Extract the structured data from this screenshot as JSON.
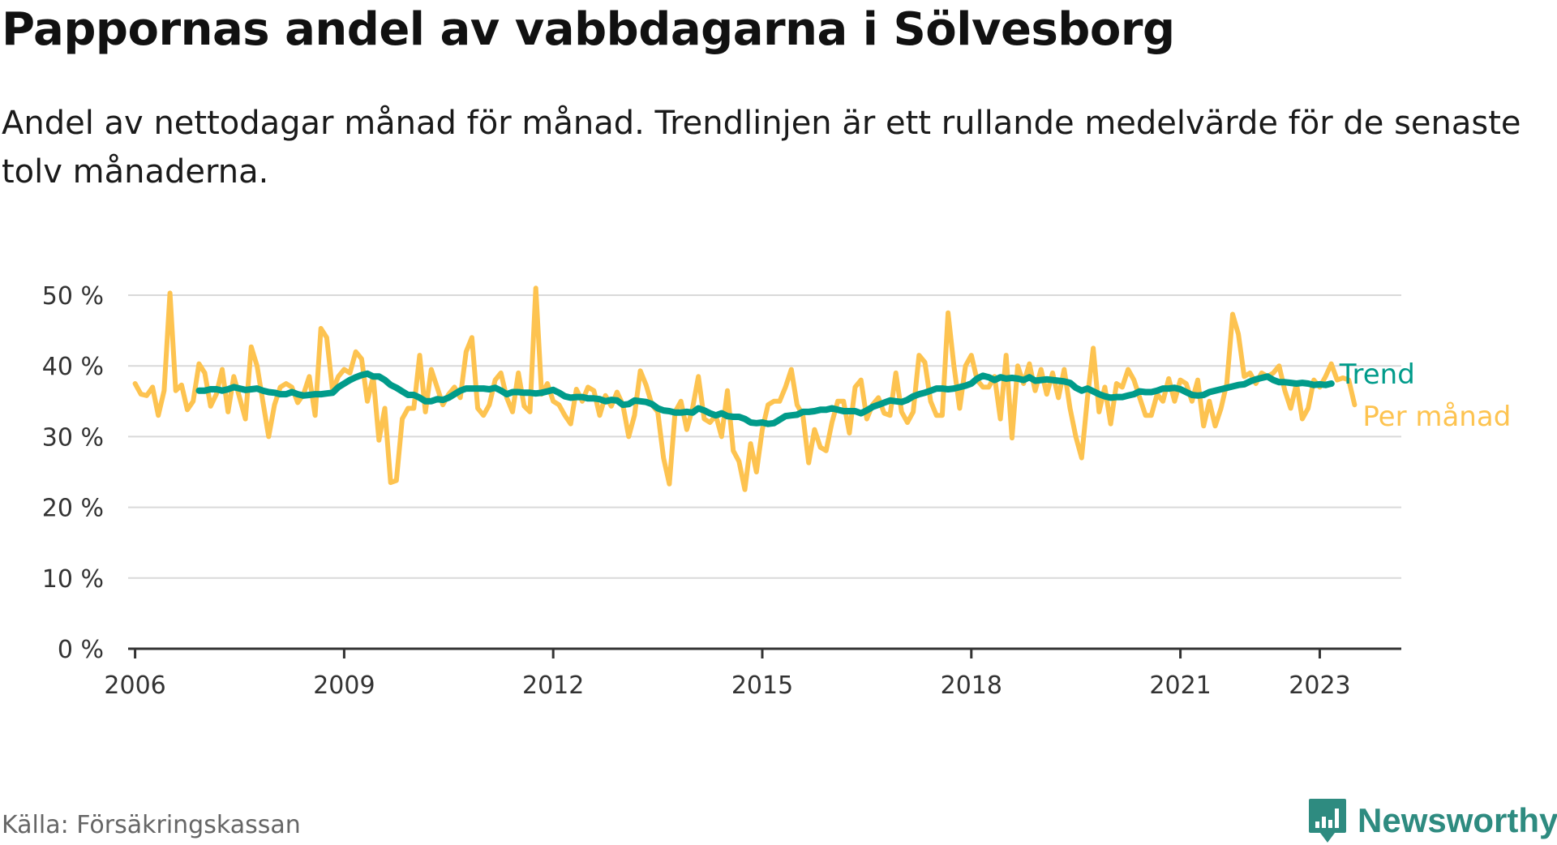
{
  "title": "Pappornas andel av vabbdagarna i Sölvesborg",
  "subtitle": "Andel av nettodagar månad för månad. Trendlinjen är ett rullande medelvärde för de senaste tolv månaderna.",
  "source": "Källa: Försäkringskassan",
  "brand": "Newsworthy",
  "colors": {
    "monthly": "#fdc350",
    "trend": "#009b8a",
    "grid": "#d9d9d9",
    "axis": "#333333",
    "brand": "#2e8b80"
  },
  "chart_data": {
    "type": "line",
    "title": "Pappornas andel av vabbdagarna i Sölvesborg",
    "xlabel": "",
    "ylabel": "",
    "ylim": [
      0,
      50
    ],
    "xlim": [
      2005.9,
      2024.17
    ],
    "y_ticks": [
      0,
      10,
      20,
      30,
      40,
      50
    ],
    "y_tick_labels": [
      "0 %",
      "10 %",
      "20 %",
      "30 %",
      "40 %",
      "50 %"
    ],
    "x_ticks": [
      2006,
      2009,
      2012,
      2015,
      2018,
      2021,
      2023
    ],
    "x_tick_labels": [
      "2006",
      "2009",
      "2012",
      "2015",
      "2018",
      "2021",
      "2023"
    ],
    "start": 2006.0,
    "step": 0.08333,
    "series": [
      {
        "name": "Per månad",
        "values": [
          37.5,
          36,
          35.8,
          37,
          33,
          36.5,
          50.3,
          36.5,
          37.3,
          33.8,
          35,
          40.3,
          39,
          34.3,
          36,
          39.5,
          33.5,
          38.5,
          35.5,
          32.5,
          42.7,
          40,
          35,
          30,
          34.5,
          37,
          37.5,
          37,
          34.8,
          36,
          38.5,
          33,
          45.3,
          44,
          36.5,
          38.5,
          39.5,
          39,
          42,
          41,
          35,
          38.5,
          29.5,
          34,
          23.5,
          23.8,
          32.5,
          34,
          34,
          41.5,
          33.5,
          39.5,
          37,
          34.5,
          36,
          37,
          35.5,
          42,
          44,
          34,
          33,
          34.5,
          38,
          39,
          35.5,
          33.5,
          39,
          34.3,
          33.5,
          51,
          36,
          37.5,
          35,
          34.5,
          33,
          31.8,
          36.7,
          35,
          37,
          36.5,
          33,
          35.8,
          34.3,
          36.3,
          34.5,
          30,
          33,
          39.3,
          37.3,
          34.5,
          33.5,
          27,
          23.3,
          33.5,
          35,
          31,
          34,
          38.5,
          32.5,
          32,
          33,
          30,
          36.5,
          28,
          26.5,
          22.5,
          29,
          25,
          31,
          34.5,
          35,
          35,
          37,
          39.5,
          34.5,
          33,
          26.3,
          31,
          28.5,
          28,
          32,
          35,
          35,
          30.5,
          37,
          38,
          32.5,
          34.5,
          35.5,
          33.3,
          33,
          39,
          33.5,
          32,
          33.5,
          41.5,
          40.5,
          35,
          33,
          33,
          47.5,
          40,
          34,
          40,
          41.5,
          38,
          37,
          37,
          38.5,
          32.5,
          41.5,
          29.8,
          40,
          37.5,
          40.3,
          36.5,
          39.5,
          36,
          39,
          35.5,
          39.5,
          34,
          30,
          27,
          35.5,
          42.5,
          33.5,
          37,
          31.8,
          37.5,
          37,
          39.5,
          38,
          35.5,
          33,
          33,
          36,
          35,
          38.2,
          35,
          38,
          37.5,
          35,
          38,
          31.5,
          35,
          31.5,
          34,
          37.5,
          47.3,
          44.5,
          38.5,
          39,
          37.5,
          39,
          38.5,
          39,
          40,
          36.5,
          34,
          37.5,
          32.5,
          34,
          38,
          37,
          38.5,
          40.3,
          38,
          38.3,
          38,
          34.5
        ]
      },
      {
        "name": "Trend",
        "start": 2006.917,
        "values": [
          36.5,
          36.5,
          36.7,
          36.7,
          36.5,
          36.7,
          37,
          36.8,
          36.6,
          36.7,
          36.8,
          36.5,
          36.3,
          36.2,
          36,
          36,
          36.3,
          36,
          35.8,
          35.9,
          36,
          36,
          36.1,
          36.2,
          37,
          37.5,
          38,
          38.4,
          38.7,
          38.9,
          38.5,
          38.5,
          38,
          37.3,
          36.9,
          36.4,
          35.9,
          35.9,
          35.5,
          35,
          35,
          35.3,
          35.2,
          35.5,
          36,
          36.5,
          36.8,
          36.8,
          36.8,
          36.8,
          36.7,
          36.9,
          36.5,
          36,
          36.3,
          36.3,
          36.2,
          36.2,
          36.1,
          36.2,
          36.4,
          36.6,
          36.2,
          35.7,
          35.5,
          35.6,
          35.6,
          35.4,
          35.4,
          35.3,
          35,
          35.2,
          35.1,
          34.5,
          34.6,
          35.1,
          35,
          34.9,
          34.6,
          34,
          33.7,
          33.6,
          33.4,
          33.4,
          33.5,
          33.4,
          34,
          33.7,
          33.3,
          33,
          33.3,
          32.9,
          32.8,
          32.8,
          32.5,
          32,
          31.9,
          32,
          31.8,
          31.9,
          32.4,
          32.9,
          33,
          33.1,
          33.5,
          33.5,
          33.6,
          33.8,
          33.8,
          34,
          33.8,
          33.6,
          33.6,
          33.6,
          33.3,
          33.7,
          34.2,
          34.5,
          34.8,
          35.1,
          35,
          34.9,
          35.2,
          35.7,
          36,
          36.2,
          36.5,
          36.8,
          36.8,
          36.7,
          36.8,
          37,
          37.2,
          37.5,
          38.2,
          38.6,
          38.4,
          38,
          38.4,
          38.2,
          38.3,
          38.2,
          38,
          38.4,
          37.9,
          38,
          38.1,
          38,
          37.9,
          37.8,
          37.6,
          36.9,
          36.5,
          36.8,
          36.4,
          36,
          35.7,
          35.5,
          35.6,
          35.6,
          35.8,
          36,
          36.4,
          36.3,
          36.3,
          36.5,
          36.8,
          36.8,
          36.9,
          36.7,
          36.3,
          35.9,
          35.8,
          35.9,
          36.3,
          36.5,
          36.7,
          36.9,
          37.1,
          37.3,
          37.4,
          37.8,
          38.1,
          38.3,
          38.5,
          38,
          37.7,
          37.7,
          37.6,
          37.5,
          37.6,
          37.5,
          37.3,
          37.4,
          37.3,
          37.5
        ]
      }
    ],
    "legend": [
      {
        "name": "Trend",
        "placement": "right-end"
      },
      {
        "name": "Per månad",
        "placement": "right-end"
      }
    ]
  }
}
